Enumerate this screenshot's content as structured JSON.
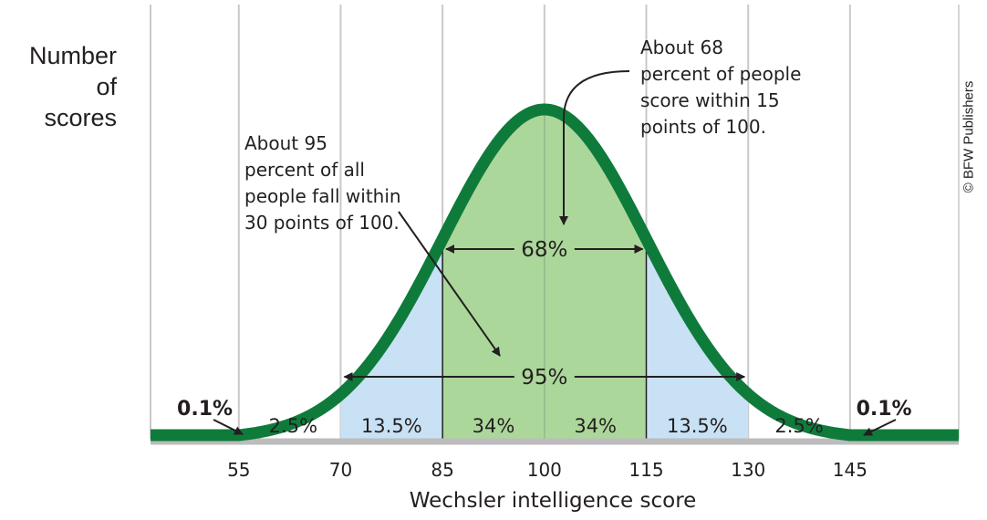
{
  "chart_data": {
    "type": "area",
    "title": "",
    "ylabel_lines": [
      "Number of",
      "scores"
    ],
    "xlabel": "Wechsler intelligence score",
    "x_ticks": [
      55,
      70,
      85,
      100,
      115,
      130,
      145
    ],
    "xlim": [
      42,
      161
    ],
    "distribution": {
      "mean": 100,
      "sd": 15
    },
    "bands": [
      {
        "from": 70,
        "to": 85,
        "color": "#c8e1f4"
      },
      {
        "from": 85,
        "to": 115,
        "color": "#acd79b"
      },
      {
        "from": 115,
        "to": 130,
        "color": "#c8e1f4"
      }
    ],
    "region_labels": [
      {
        "text": "0.1%",
        "x": 50
      },
      {
        "text": "2.5%",
        "x": 63
      },
      {
        "text": "13.5%",
        "x": 77.5
      },
      {
        "text": "34%",
        "x": 92.5
      },
      {
        "text": "34%",
        "x": 107.5
      },
      {
        "text": "13.5%",
        "x": 122.5
      },
      {
        "text": "2.5%",
        "x": 137.5
      },
      {
        "text": "0.1%",
        "x": 150
      }
    ],
    "ranges": [
      {
        "label": "68%",
        "from": 85,
        "to": 115
      },
      {
        "label": "95%",
        "from": 70,
        "to": 130
      }
    ],
    "colors": {
      "curve": "#0f7b3b",
      "gridline": "#c9c9c9",
      "axis": "#bcbcbc",
      "inner_band": "#acd79b",
      "outer_band": "#c8e1f4"
    }
  },
  "annotations": {
    "about68": [
      "About 68",
      "percent of people",
      "score within 15",
      "points of 100."
    ],
    "about95": [
      "About 95",
      "percent of all",
      "people fall within",
      "30 points of 100."
    ]
  },
  "credit": "© BFW Publishers"
}
